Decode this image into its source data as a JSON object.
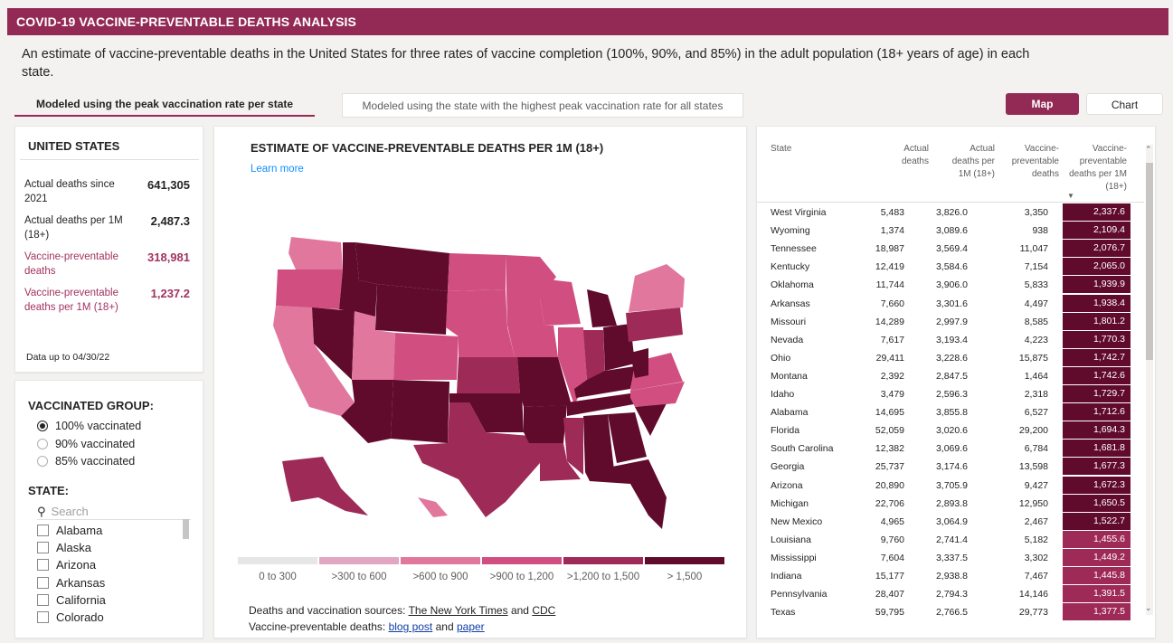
{
  "header": {
    "title": "COVID-19 VACCINE-PREVENTABLE DEATHS ANALYSIS",
    "intro": "An estimate of vaccine-preventable deaths in the United States for three rates of vaccine completion (100%, 90%, and 85%) in the adult population (18+ years of age) in each state."
  },
  "tabs": {
    "peak": "Modeled using the peak vaccination rate per state",
    "highest": "Modeled using the state with the highest peak vaccination rate for all states"
  },
  "view_buttons": {
    "map": "Map",
    "chart": "Chart"
  },
  "summary": {
    "title": "UNITED STATES",
    "stats": [
      {
        "label": "Actual deaths since 2021",
        "value": "641,305"
      },
      {
        "label": "Actual deaths per 1M (18+)",
        "value": "2,487.3"
      },
      {
        "label": "Vaccine-preventable deaths",
        "value": "318,981"
      },
      {
        "label": "Vaccine-preventable deaths per 1M (18+)",
        "value": "1,237.2"
      }
    ],
    "data_upto": "Data up to 04/30/22"
  },
  "filters": {
    "group_title": "VACCINATED GROUP:",
    "groups": [
      "100% vaccinated",
      "90% vaccinated",
      "85% vaccinated"
    ],
    "selected_group": 0,
    "state_title": "STATE:",
    "search_placeholder": "Search",
    "states": [
      "Alabama",
      "Alaska",
      "Arizona",
      "Arkansas",
      "California",
      "Colorado"
    ]
  },
  "map": {
    "title": "ESTIMATE OF VACCINE-PREVENTABLE DEATHS PER 1M (18+)",
    "learn_more": "Learn more",
    "legend": [
      {
        "label": "0 to 300",
        "color": "#e6e6e6"
      },
      {
        "label": ">300 to 600",
        "color": "#e2a6c2"
      },
      {
        "label": ">600 to 900",
        "color": "#e2779e"
      },
      {
        "label": ">900 to 1,200",
        "color": "#d14f80"
      },
      {
        "label": ">1,200 to 1,500",
        "color": "#9e2a57"
      },
      {
        "label": "> 1,500",
        "color": "#600a2c"
      }
    ],
    "sources_prefix": "Deaths and vaccination sources:",
    "source_nyt": "The New York Times",
    "source_and": "and",
    "source_cdc": "CDC",
    "vpd_prefix": "Vaccine-preventable deaths:",
    "vpd_blog": "blog post",
    "vpd_and": "and",
    "vpd_paper": "paper"
  },
  "table": {
    "headers": [
      "State",
      "Actual deaths",
      "Actual deaths per 1M (18+)",
      "Vaccine-preventable deaths",
      "Vaccine-preventable deaths per 1M (18+)"
    ],
    "rows": [
      [
        "West Virginia",
        "5,483",
        "3,826.0",
        "3,350",
        "2,337.6"
      ],
      [
        "Wyoming",
        "1,374",
        "3,089.6",
        "938",
        "2,109.4"
      ],
      [
        "Tennessee",
        "18,987",
        "3,569.4",
        "11,047",
        "2,076.7"
      ],
      [
        "Kentucky",
        "12,419",
        "3,584.6",
        "7,154",
        "2,065.0"
      ],
      [
        "Oklahoma",
        "11,744",
        "3,906.0",
        "5,833",
        "1,939.9"
      ],
      [
        "Arkansas",
        "7,660",
        "3,301.6",
        "4,497",
        "1,938.4"
      ],
      [
        "Missouri",
        "14,289",
        "2,997.9",
        "8,585",
        "1,801.2"
      ],
      [
        "Nevada",
        "7,617",
        "3,193.4",
        "4,223",
        "1,770.3"
      ],
      [
        "Ohio",
        "29,411",
        "3,228.6",
        "15,875",
        "1,742.7"
      ],
      [
        "Montana",
        "2,392",
        "2,847.5",
        "1,464",
        "1,742.6"
      ],
      [
        "Idaho",
        "3,479",
        "2,596.3",
        "2,318",
        "1,729.7"
      ],
      [
        "Alabama",
        "14,695",
        "3,855.8",
        "6,527",
        "1,712.6"
      ],
      [
        "Florida",
        "52,059",
        "3,020.6",
        "29,200",
        "1,694.3"
      ],
      [
        "South Carolina",
        "12,382",
        "3,069.6",
        "6,784",
        "1,681.8"
      ],
      [
        "Georgia",
        "25,737",
        "3,174.6",
        "13,598",
        "1,677.3"
      ],
      [
        "Arizona",
        "20,890",
        "3,705.9",
        "9,427",
        "1,672.3"
      ],
      [
        "Michigan",
        "22,706",
        "2,893.8",
        "12,950",
        "1,650.5"
      ],
      [
        "New Mexico",
        "4,965",
        "3,064.9",
        "2,467",
        "1,522.7"
      ],
      [
        "Louisiana",
        "9,760",
        "2,741.4",
        "5,182",
        "1,455.6"
      ],
      [
        "Mississippi",
        "7,604",
        "3,337.5",
        "3,302",
        "1,449.2"
      ],
      [
        "Indiana",
        "15,177",
        "2,938.8",
        "7,467",
        "1,445.8"
      ],
      [
        "Pennsylvania",
        "28,407",
        "2,794.3",
        "14,146",
        "1,391.5"
      ],
      [
        "Texas",
        "59,795",
        "2,766.5",
        "29,773",
        "1,377.5"
      ]
    ],
    "dark_color": "#600a2c",
    "mid_color": "#9e2a57"
  }
}
